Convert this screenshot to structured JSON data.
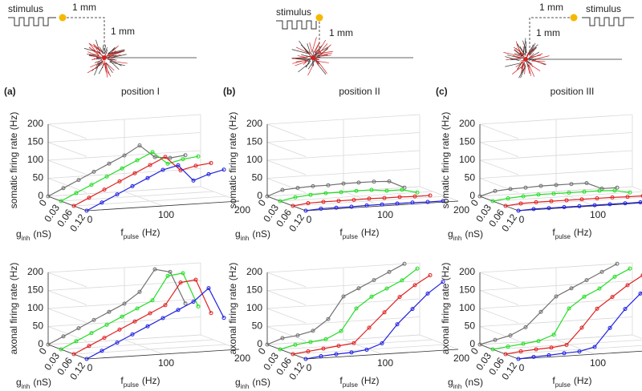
{
  "diagrams": [
    {
      "stimulus": "stimulus",
      "horizontal_distance": "1 mm",
      "vertical_distance": "1 mm"
    },
    {
      "stimulus": "stimulus",
      "vertical_distance": "1 mm"
    },
    {
      "stimulus": "stimulus",
      "horizontal_distance": "1 mm",
      "vertical_distance": "1 mm"
    }
  ],
  "chart_data": [
    {
      "type": "line3d",
      "panel": "(a)",
      "title": "position I",
      "ylabel": "somatic firing rate (Hz)",
      "xlabel": {
        "symbol": "f",
        "subscript": "pulse",
        "unit": "(Hz)"
      },
      "depthlabel": {
        "symbol": "g",
        "subscript": "inh",
        "unit": "(nS)"
      },
      "x": [
        0,
        20,
        40,
        60,
        80,
        100,
        120,
        140,
        160,
        180
      ],
      "xlim": [
        0,
        200
      ],
      "xticks": [
        0,
        100,
        200
      ],
      "ylim": [
        0,
        200
      ],
      "yticks": [
        0,
        50,
        100,
        150,
        200
      ],
      "depth_ticks": [
        "0",
        "0.03",
        "0.06",
        "0.12"
      ],
      "series": [
        {
          "color": "#707070",
          "values": [
            0,
            20,
            40,
            60,
            80,
            100,
            125,
            90,
            85,
            90
          ]
        },
        {
          "color": "#22dd22",
          "values": [
            0,
            20,
            40,
            60,
            80,
            100,
            120,
            85,
            95,
            100
          ]
        },
        {
          "color": "#e02020",
          "values": [
            0,
            20,
            40,
            60,
            80,
            100,
            120,
            80,
            90,
            95
          ]
        },
        {
          "color": "#2020e0",
          "values": [
            0,
            20,
            40,
            60,
            80,
            100,
            110,
            65,
            80,
            90
          ]
        }
      ]
    },
    {
      "type": "line3d",
      "panel": "(b)",
      "title": "position II",
      "ylabel": "somatic firing rate (Hz)",
      "xlabel": {
        "symbol": "f",
        "subscript": "pulse",
        "unit": "(Hz)"
      },
      "depthlabel": {
        "symbol": "g",
        "subscript": "inh",
        "unit": "(nS)"
      },
      "x": [
        0,
        20,
        40,
        60,
        80,
        100,
        120,
        140,
        160,
        180
      ],
      "xlim": [
        0,
        200
      ],
      "xticks": [
        0,
        100,
        200
      ],
      "ylim": [
        0,
        200
      ],
      "yticks": [
        0,
        50,
        100,
        150,
        200
      ],
      "depth_ticks": [
        "0",
        "0.03",
        "0.06",
        "0.12"
      ],
      "series": [
        {
          "color": "#707070",
          "values": [
            0,
            15,
            18,
            20,
            20,
            22,
            22,
            22,
            20,
            0
          ]
        },
        {
          "color": "#22dd22",
          "values": [
            0,
            8,
            12,
            14,
            14,
            15,
            15,
            10,
            10,
            0
          ]
        },
        {
          "color": "#e02020",
          "values": [
            0,
            5,
            6,
            6,
            6,
            7,
            6,
            6,
            5,
            5
          ]
        },
        {
          "color": "#2020e0",
          "values": [
            0,
            3,
            3,
            3,
            4,
            4,
            4,
            4,
            3,
            3
          ]
        }
      ]
    },
    {
      "type": "line3d",
      "panel": "(c)",
      "title": "position III",
      "ylabel": "somatic firing rate (Hz)",
      "xlabel": {
        "symbol": "f",
        "subscript": "pulse",
        "unit": "(Hz)"
      },
      "depthlabel": {
        "symbol": "g",
        "subscript": "inh",
        "unit": "(nS)"
      },
      "x": [
        0,
        20,
        40,
        60,
        80,
        100,
        120,
        140,
        160,
        180
      ],
      "xlim": [
        0,
        200
      ],
      "xticks": [
        0,
        100,
        200
      ],
      "ylim": [
        0,
        200
      ],
      "yticks": [
        0,
        50,
        100,
        150,
        200
      ],
      "depth_ticks": [
        "0",
        "0.03",
        "0.06",
        "0.12"
      ],
      "series": [
        {
          "color": "#707070",
          "values": [
            0,
            12,
            15,
            16,
            18,
            18,
            18,
            18,
            0,
            0
          ]
        },
        {
          "color": "#22dd22",
          "values": [
            0,
            5,
            8,
            10,
            10,
            10,
            10,
            10,
            8,
            0
          ]
        },
        {
          "color": "#e02020",
          "values": [
            0,
            4,
            5,
            5,
            5,
            5,
            5,
            5,
            4,
            4
          ]
        },
        {
          "color": "#2020e0",
          "values": [
            0,
            2,
            2,
            2,
            2,
            2,
            2,
            2,
            2,
            2
          ]
        }
      ]
    },
    {
      "type": "line3d",
      "ylabel": "axonal firing rate (Hz)",
      "xlabel": {
        "symbol": "f",
        "subscript": "pulse",
        "unit": "(Hz)"
      },
      "depthlabel": {
        "symbol": "g",
        "subscript": "inh",
        "unit": "(nS)"
      },
      "x": [
        0,
        20,
        40,
        60,
        80,
        100,
        120,
        140,
        160,
        180
      ],
      "xlim": [
        0,
        200
      ],
      "xticks": [
        0,
        100,
        200
      ],
      "ylim": [
        0,
        200
      ],
      "yticks": [
        0,
        50,
        100,
        150,
        200
      ],
      "depth_ticks": [
        "0",
        "0.03",
        "0.06",
        "0.12"
      ],
      "series": [
        {
          "color": "#707070",
          "values": [
            0,
            20,
            40,
            60,
            80,
            100,
            130,
            190,
            180,
            90
          ]
        },
        {
          "color": "#22dd22",
          "values": [
            0,
            20,
            40,
            60,
            80,
            100,
            120,
            185,
            190,
            95
          ]
        },
        {
          "color": "#e02020",
          "values": [
            0,
            20,
            40,
            60,
            80,
            100,
            120,
            180,
            185,
            90
          ]
        },
        {
          "color": "#2020e0",
          "values": [
            0,
            20,
            40,
            60,
            80,
            100,
            120,
            140,
            175,
            90
          ]
        }
      ]
    },
    {
      "type": "line3d",
      "ylabel": "axonal firing rate (Hz)",
      "xlabel": {
        "symbol": "f",
        "subscript": "pulse",
        "unit": "(Hz)"
      },
      "depthlabel": {
        "symbol": "g",
        "subscript": "inh",
        "unit": "(nS)"
      },
      "x": [
        0,
        20,
        40,
        60,
        80,
        100,
        120,
        140,
        160,
        180
      ],
      "xlim": [
        0,
        200
      ],
      "xticks": [
        0,
        100,
        200
      ],
      "ylim": [
        0,
        200
      ],
      "yticks": [
        0,
        50,
        100,
        150,
        200
      ],
      "depth_ticks": [
        "0",
        "0.03",
        "0.06",
        "0.12"
      ],
      "series": [
        {
          "color": "#707070",
          "values": [
            0,
            15,
            20,
            30,
            60,
            120,
            140,
            160,
            180,
            200
          ]
        },
        {
          "color": "#22dd22",
          "values": [
            0,
            10,
            15,
            20,
            40,
            100,
            130,
            150,
            170,
            200
          ]
        },
        {
          "color": "#e02020",
          "values": [
            0,
            5,
            10,
            15,
            20,
            60,
            100,
            140,
            170,
            195
          ]
        },
        {
          "color": "#2020e0",
          "values": [
            0,
            5,
            8,
            10,
            15,
            30,
            80,
            120,
            160,
            190
          ]
        }
      ]
    },
    {
      "type": "line3d",
      "ylabel": "axonal firing rate (Hz)",
      "xlabel": {
        "symbol": "f",
        "subscript": "pulse",
        "unit": "(Hz)"
      },
      "depthlabel": {
        "symbol": "g",
        "subscript": "inh",
        "unit": "(nS)"
      },
      "x": [
        0,
        20,
        40,
        60,
        80,
        100,
        120,
        140,
        160,
        180
      ],
      "xlim": [
        0,
        200
      ],
      "xticks": [
        0,
        100,
        200
      ],
      "ylim": [
        0,
        200
      ],
      "yticks": [
        0,
        50,
        100,
        150,
        200
      ],
      "depth_ticks": [
        "0",
        "0.03",
        "0.06",
        "0.12"
      ],
      "series": [
        {
          "color": "#707070",
          "values": [
            0,
            10,
            20,
            40,
            80,
            120,
            140,
            160,
            180,
            200
          ]
        },
        {
          "color": "#22dd22",
          "values": [
            0,
            5,
            10,
            15,
            30,
            100,
            130,
            150,
            180,
            200
          ]
        },
        {
          "color": "#e02020",
          "values": [
            0,
            5,
            8,
            10,
            15,
            60,
            110,
            140,
            170,
            195
          ]
        },
        {
          "color": "#2020e0",
          "values": [
            0,
            3,
            5,
            8,
            10,
            20,
            70,
            120,
            160,
            190
          ]
        }
      ]
    }
  ]
}
